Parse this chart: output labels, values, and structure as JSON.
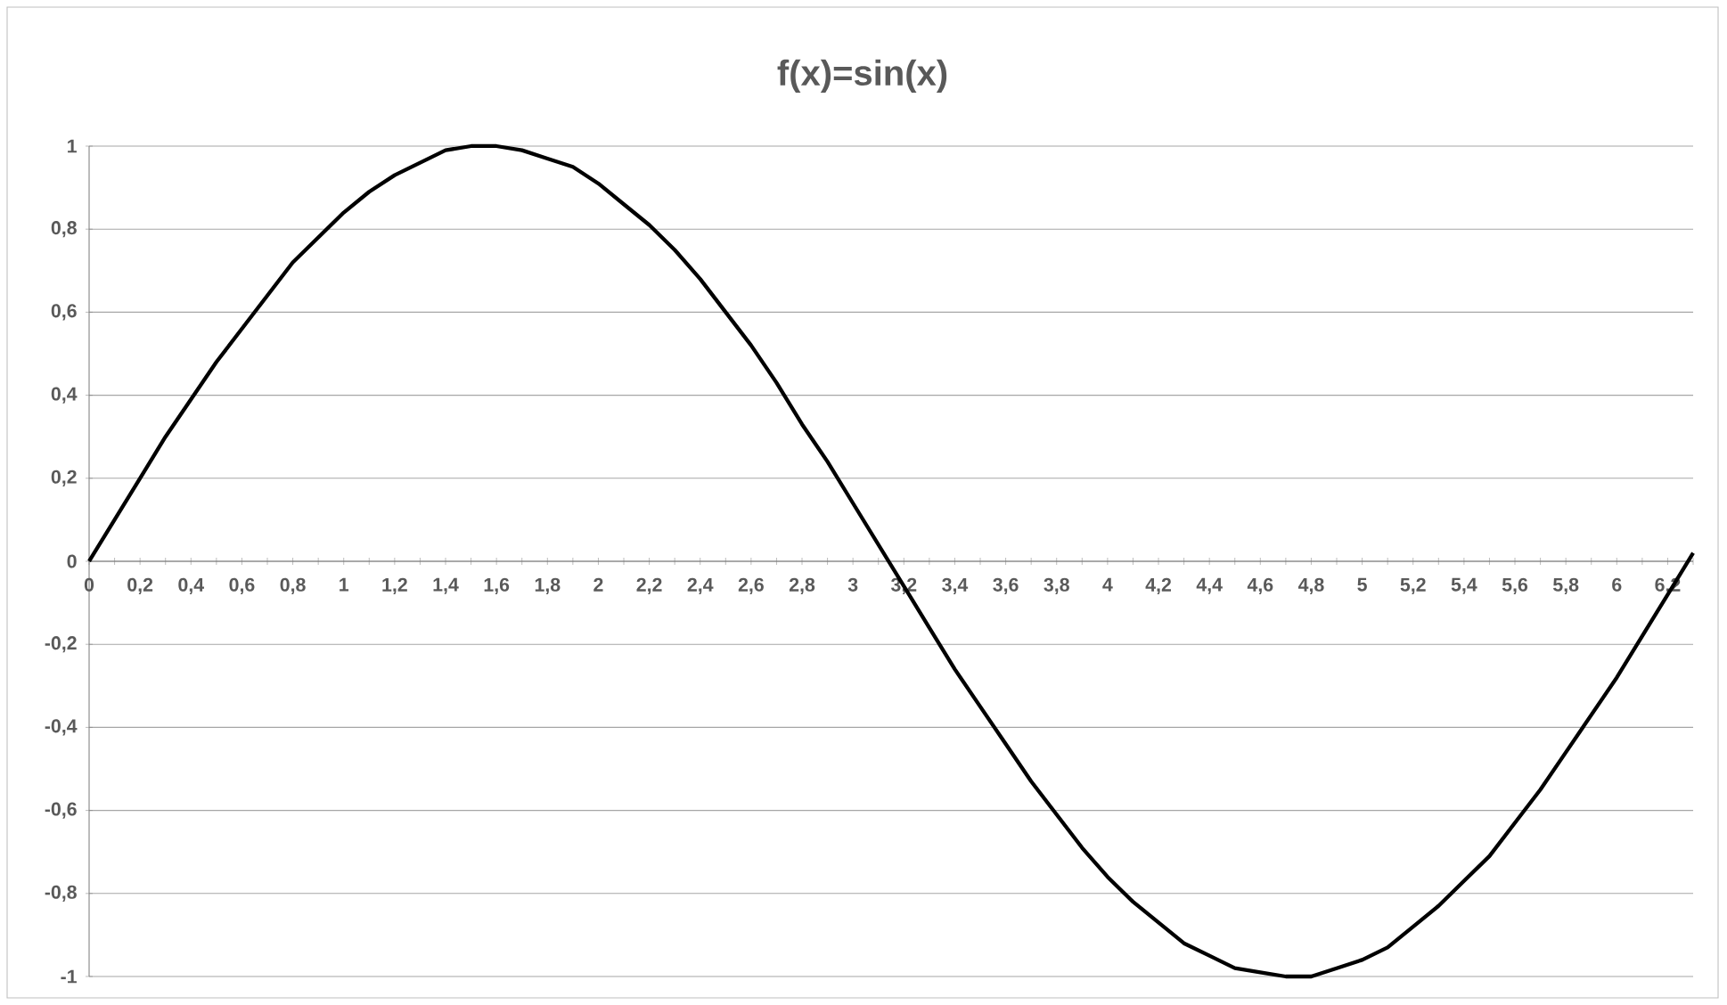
{
  "chart_data": {
    "type": "line",
    "title": "f(x)=sin(x)",
    "categories": [
      "0",
      null,
      "0,2",
      null,
      "0,4",
      null,
      "0,6",
      null,
      "0,8",
      null,
      "1",
      null,
      "1,2",
      null,
      "1,4",
      null,
      "1,6",
      null,
      "1,8",
      null,
      "2",
      null,
      "2,2",
      null,
      "2,4",
      null,
      "2,6",
      null,
      "2,8",
      null,
      "3",
      null,
      "3,2",
      null,
      "3,4",
      null,
      "3,6",
      null,
      "3,8",
      null,
      "4",
      null,
      "4,2",
      null,
      "4,4",
      null,
      "4,6",
      null,
      "4,8",
      null,
      "5",
      null,
      "5,2",
      null,
      "5,4",
      null,
      "5,6",
      null,
      "5,8",
      null,
      "6",
      null,
      "6,2",
      null
    ],
    "series": [
      {
        "color": "#000000",
        "values": [
          0,
          0.1,
          0.2,
          0.3,
          0.39,
          0.48,
          0.56,
          0.64,
          0.72,
          0.78,
          0.84,
          0.89,
          0.93,
          0.96,
          0.99,
          1.0,
          1.0,
          0.99,
          0.97,
          0.95,
          0.91,
          0.86,
          0.81,
          0.75,
          0.68,
          0.6,
          0.52,
          0.43,
          0.33,
          0.24,
          0.14,
          0.04,
          -0.06,
          -0.16,
          -0.26,
          -0.35,
          -0.44,
          -0.53,
          -0.61,
          -0.69,
          -0.76,
          -0.82,
          -0.87,
          -0.92,
          -0.95,
          -0.98,
          -0.99,
          -1.0,
          -1.0,
          -0.98,
          -0.96,
          -0.93,
          -0.88,
          -0.83,
          -0.77,
          -0.71,
          -0.63,
          -0.55,
          -0.46,
          -0.37,
          -0.28,
          -0.18,
          -0.08,
          0.02
        ]
      }
    ],
    "ylim": [
      -1,
      1
    ],
    "yticks": [
      {
        "value": -1,
        "label": "-1"
      },
      {
        "value": -0.8,
        "label": "-0,8"
      },
      {
        "value": -0.6,
        "label": "-0,6"
      },
      {
        "value": -0.4,
        "label": "-0,4"
      },
      {
        "value": -0.2,
        "label": "-0,2"
      },
      {
        "value": 0,
        "label": "0"
      },
      {
        "value": 0.2,
        "label": "0,2"
      },
      {
        "value": 0.4,
        "label": "0,4"
      },
      {
        "value": 0.6,
        "label": "0,6"
      },
      {
        "value": 0.8,
        "label": "0,8"
      },
      {
        "value": 1,
        "label": "1"
      }
    ],
    "grid": "y"
  }
}
